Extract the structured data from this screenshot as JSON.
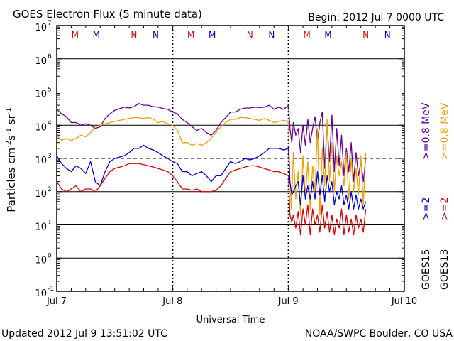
{
  "title": "GOES Electron Flux (5 minute data)",
  "begin": "Begin: 2012 Jul 7 0000 UTC",
  "updated": "Updated 2012 Jul  9 13:51:02 UTC",
  "credit": "NOAA/SWPC Boulder, CO USA",
  "colors": {
    "purple": "#660099",
    "orange": "#f0a000",
    "blue": "#0000dd",
    "red": "#dd0000",
    "mnRed": "#dd0000",
    "mnBlue": "#0000cc"
  },
  "chart_data": {
    "type": "line",
    "title": "GOES Electron Flux (5 minute data)",
    "xlabel": "Universal Time",
    "ylabel": "Particles cm⁻²s⁻¹sr⁻¹",
    "ylabel_parts": {
      "base": "Particles cm",
      "sup1": "-2",
      "mid1": "s",
      "sup2": "-1",
      "mid2": " sr",
      "sup3": "-1"
    },
    "xlim": [
      0,
      72
    ],
    "ylim_log10": [
      -1,
      7
    ],
    "x_ticks": [
      {
        "hour": 0,
        "label": "Jul 7"
      },
      {
        "hour": 24,
        "label": "Jul 8"
      },
      {
        "hour": 48,
        "label": "Jul 9"
      },
      {
        "hour": 72,
        "label": "Jul 10"
      }
    ],
    "y_ticks": [
      {
        "exp": 7,
        "label": "10",
        "sup": "7"
      },
      {
        "exp": 6,
        "label": "10",
        "sup": "6"
      },
      {
        "exp": 5,
        "label": "10",
        "sup": "5"
      },
      {
        "exp": 4,
        "label": "10",
        "sup": "4"
      },
      {
        "exp": 3,
        "label": "10",
        "sup": "3"
      },
      {
        "exp": 2,
        "label": "10",
        "sup": "2"
      },
      {
        "exp": 1,
        "label": "10",
        "sup": "1"
      },
      {
        "exp": 0,
        "label": "10",
        "sup": "0"
      },
      {
        "exp": -1,
        "label": "10",
        "sup": "-1"
      }
    ],
    "alert_threshold_exp": 3,
    "mn_markers": [
      {
        "hour": 3.8,
        "label": "M",
        "color": "red"
      },
      {
        "hour": 8.2,
        "label": "M",
        "color": "blue"
      },
      {
        "hour": 16.0,
        "label": "N",
        "color": "red"
      },
      {
        "hour": 20.5,
        "label": "N",
        "color": "blue"
      },
      {
        "hour": 27.8,
        "label": "M",
        "color": "red"
      },
      {
        "hour": 32.2,
        "label": "M",
        "color": "blue"
      },
      {
        "hour": 40.0,
        "label": "N",
        "color": "red"
      },
      {
        "hour": 44.5,
        "label": "N",
        "color": "blue"
      },
      {
        "hour": 51.8,
        "label": "M",
        "color": "red"
      },
      {
        "hour": 56.2,
        "label": "M",
        "color": "blue"
      },
      {
        "hour": 64.0,
        "label": "N",
        "color": "red"
      },
      {
        "hour": 68.5,
        "label": "N",
        "color": "blue"
      }
    ],
    "legend": {
      "right_col1": [
        {
          "text": ">=0.8  MeV",
          "color": "purple"
        },
        {
          "text": ">=2",
          "color": "blue"
        },
        {
          "text": "GOES15",
          "color": "black"
        }
      ],
      "right_col2": [
        {
          "text": ">=0.8  MeV",
          "color": "orange"
        },
        {
          "text": ">=2",
          "color": "red"
        },
        {
          "text": "GOES13",
          "color": "black"
        }
      ]
    },
    "series": [
      {
        "name": "GOES15 >=0.8 MeV",
        "color": "purple",
        "x": [
          0,
          1,
          2,
          3,
          4,
          5,
          6,
          7,
          8,
          9,
          10,
          11,
          12,
          14,
          15,
          16,
          17,
          18,
          19,
          20,
          21,
          22,
          23,
          24,
          25,
          26,
          27,
          28,
          29,
          30,
          31,
          32,
          33,
          34,
          35,
          36,
          37,
          38,
          39,
          40,
          41,
          42,
          43,
          44,
          45,
          46,
          47,
          48,
          48.3,
          48.7,
          49.0,
          49.5,
          50,
          50.5,
          51,
          51.5,
          52,
          52.5,
          53,
          53.5,
          54,
          54.5,
          55,
          55.5,
          56,
          56.5,
          57,
          57.5,
          58,
          58.5,
          59,
          59.5,
          60,
          60.5,
          61,
          61.5,
          62,
          62.5,
          63,
          63.5,
          64
        ],
        "values": [
          30000,
          22000,
          18000,
          12000,
          12000,
          10000,
          11000,
          10000,
          8000,
          9000,
          16000,
          22000,
          28000,
          35000,
          33000,
          36000,
          45000,
          40000,
          40000,
          36000,
          35000,
          32000,
          30000,
          25000,
          22000,
          15000,
          12000,
          9000,
          7000,
          8000,
          6000,
          5000,
          7000,
          12000,
          17000,
          25000,
          25000,
          30000,
          33000,
          33000,
          35000,
          34000,
          35000,
          40000,
          30000,
          35000,
          30000,
          40000,
          8000,
          3000,
          12000,
          5000,
          8000,
          1500,
          10000,
          2500,
          15000,
          3000,
          8000,
          18000,
          3000,
          12000,
          25000,
          500,
          10000,
          800,
          20000,
          400,
          8000,
          600,
          5000,
          300,
          2000,
          400,
          3000,
          200,
          1500,
          300,
          800,
          200,
          1000
        ]
      },
      {
        "name": "GOES13 >=0.8 MeV",
        "color": "orange",
        "x": [
          0,
          1,
          2,
          3,
          4,
          5,
          6,
          7,
          8,
          9,
          10,
          11,
          12,
          14,
          15,
          16,
          17,
          18,
          19,
          20,
          21,
          22,
          23,
          24,
          25,
          26,
          27,
          28,
          29,
          30,
          31,
          32,
          33,
          34,
          35,
          36,
          37,
          38,
          39,
          40,
          41,
          42,
          43,
          44,
          45,
          46,
          47,
          48,
          48.3,
          48.6,
          49.0,
          49.5,
          50,
          50.5,
          51,
          51.5,
          52,
          52.5,
          53,
          53.5,
          54,
          54.5,
          55,
          55.5,
          56,
          56.5,
          57,
          57.5,
          58,
          58.5,
          59,
          59.5,
          60,
          60.5,
          61,
          61.5,
          62,
          62.5,
          63,
          63.5,
          64
        ],
        "values": [
          5000,
          3500,
          4000,
          3500,
          4000,
          5000,
          4500,
          6000,
          9000,
          10000,
          11000,
          12000,
          13000,
          15000,
          16000,
          17000,
          17000,
          16000,
          17000,
          15000,
          12000,
          13000,
          11000,
          10000,
          7000,
          3000,
          3000,
          2500,
          2800,
          2500,
          3000,
          4000,
          6000,
          9000,
          12000,
          15000,
          15000,
          17000,
          17000,
          16000,
          15000,
          14000,
          16000,
          14000,
          12000,
          13000,
          14000,
          13000,
          200,
          30,
          1500,
          60,
          400,
          20,
          1200,
          70,
          800,
          30,
          600,
          100,
          8000,
          20,
          2000,
          150,
          15000,
          200,
          3000,
          100,
          1200,
          300,
          800,
          150,
          1500,
          60,
          1000,
          100,
          500,
          80,
          1200,
          40,
          1500
        ]
      },
      {
        "name": "GOES15 >=2 MeV",
        "color": "blue",
        "x": [
          0,
          1,
          2,
          3,
          4,
          5,
          6,
          7,
          8,
          9,
          10,
          11,
          12,
          14,
          15,
          16,
          17,
          18,
          19,
          20,
          21,
          22,
          23,
          24,
          25,
          26,
          27,
          28,
          29,
          30,
          31,
          32,
          33,
          34,
          35,
          36,
          37,
          38,
          39,
          40,
          41,
          42,
          43,
          44,
          45,
          46,
          47,
          48,
          48.3,
          48.7,
          49.0,
          49.5,
          50,
          50.5,
          51,
          51.5,
          52,
          52.5,
          53,
          53.5,
          54,
          54.5,
          55,
          55.5,
          56,
          56.5,
          57,
          57.5,
          58,
          58.5,
          59,
          59.5,
          60,
          60.5,
          61,
          61.5,
          62,
          62.5,
          63,
          63.5,
          64
        ],
        "values": [
          1200,
          700,
          500,
          400,
          600,
          500,
          350,
          800,
          200,
          150,
          400,
          800,
          1000,
          1200,
          1500,
          2000,
          2000,
          2500,
          2000,
          1800,
          1500,
          1200,
          1000,
          800,
          700,
          400,
          400,
          300,
          350,
          400,
          300,
          200,
          300,
          300,
          500,
          800,
          700,
          800,
          1000,
          900,
          1000,
          1200,
          1500,
          2000,
          2000,
          2000,
          1800,
          2000,
          200,
          80,
          100,
          150,
          200,
          40,
          300,
          60,
          150,
          60,
          200,
          60,
          400,
          80,
          300,
          50,
          300,
          100,
          200,
          40,
          100,
          60,
          150,
          40,
          80,
          30,
          100,
          30,
          80,
          30,
          60,
          30,
          50
        ]
      },
      {
        "name": "GOES13 >=2 MeV",
        "color": "red",
        "x": [
          0,
          1,
          2,
          3,
          4,
          5,
          6,
          7,
          8,
          9,
          10,
          11,
          12,
          14,
          15,
          16,
          17,
          18,
          19,
          20,
          21,
          22,
          23,
          24,
          25,
          26,
          27,
          28,
          29,
          30,
          31,
          32,
          33,
          34,
          35,
          36,
          37,
          38,
          39,
          40,
          41,
          42,
          43,
          44,
          45,
          46,
          47,
          48,
          48.3,
          48.7,
          49.0,
          49.5,
          50,
          50.5,
          51,
          51.5,
          52,
          52.5,
          53,
          53.5,
          54,
          54.5,
          55,
          55.5,
          56,
          56.5,
          57,
          57.5,
          58,
          58.5,
          59,
          59.5,
          60,
          60.5,
          61,
          61.5,
          62,
          62.5,
          63,
          63.5,
          64
        ],
        "values": [
          200,
          120,
          100,
          120,
          150,
          100,
          120,
          120,
          100,
          150,
          250,
          400,
          500,
          600,
          700,
          700,
          700,
          650,
          600,
          550,
          500,
          450,
          400,
          300,
          200,
          120,
          120,
          110,
          120,
          100,
          100,
          100,
          110,
          150,
          250,
          400,
          450,
          500,
          550,
          600,
          600,
          550,
          500,
          450,
          400,
          400,
          350,
          300,
          20,
          12,
          20,
          8,
          25,
          5,
          30,
          10,
          40,
          5,
          30,
          10,
          20,
          6,
          40,
          8,
          25,
          6,
          20,
          5,
          15,
          8,
          30,
          5,
          20,
          6,
          15,
          5,
          20,
          8,
          15,
          6,
          30
        ]
      }
    ]
  }
}
